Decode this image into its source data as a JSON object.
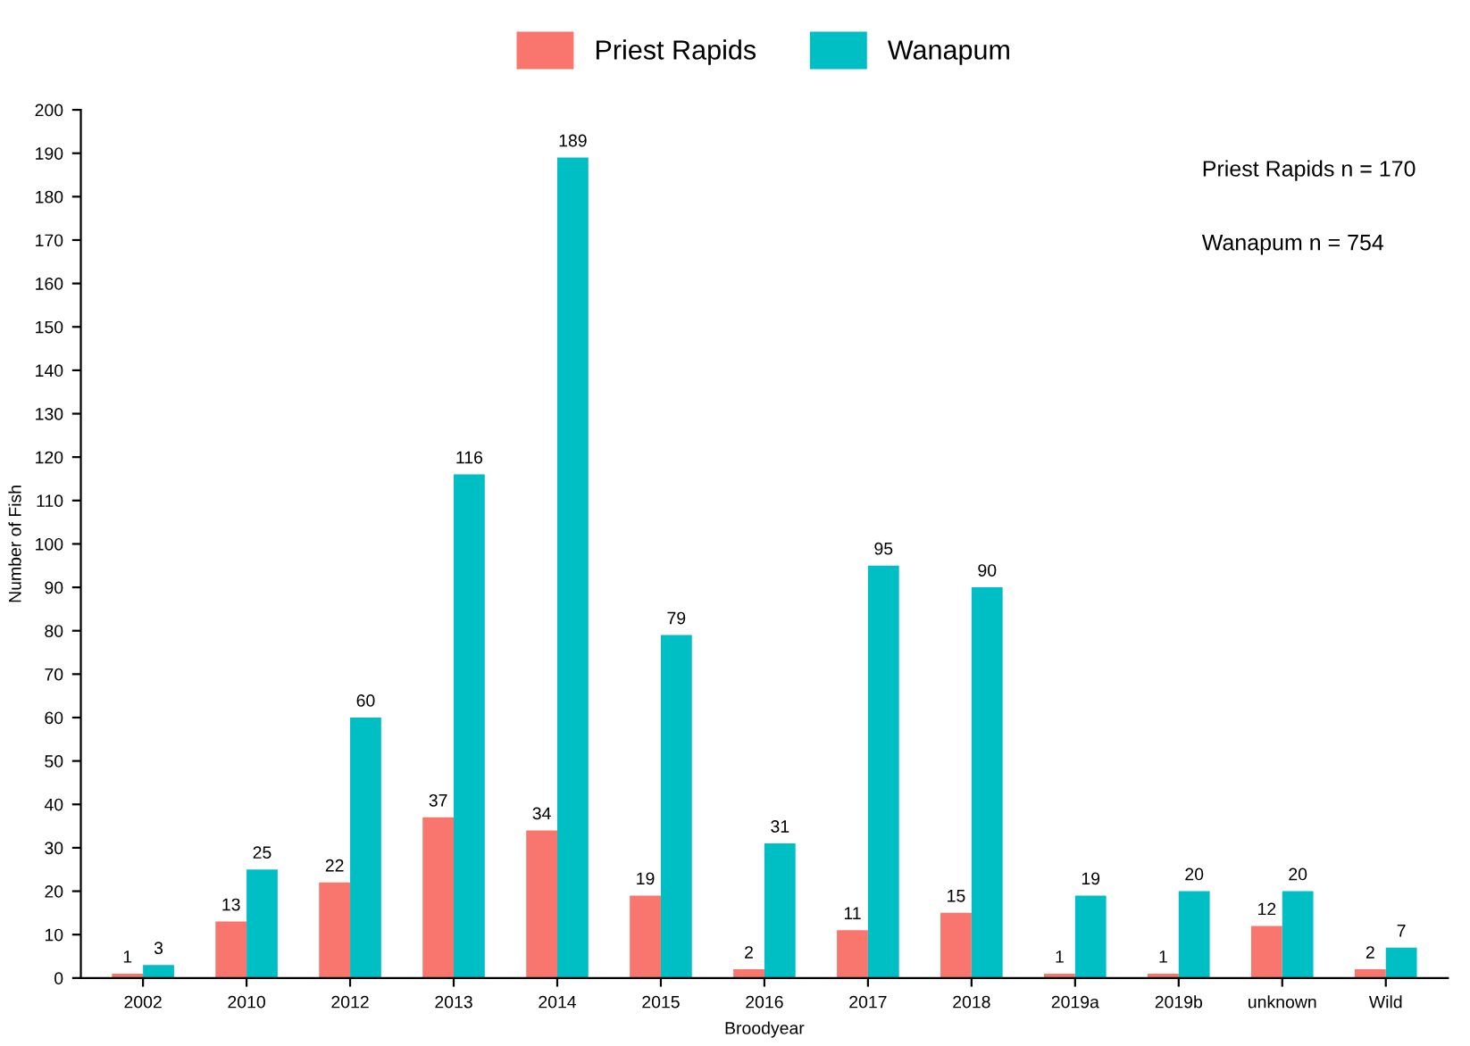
{
  "chart_data": {
    "type": "bar",
    "xlabel": "Broodyear",
    "ylabel": "Number of Fish",
    "categories": [
      "2002",
      "2010",
      "2012",
      "2013",
      "2014",
      "2015",
      "2016",
      "2017",
      "2018",
      "2019a",
      "2019b",
      "unknown",
      "Wild"
    ],
    "series": [
      {
        "name": "Priest Rapids",
        "color": "#f8766d",
        "values": [
          1,
          13,
          22,
          37,
          34,
          19,
          2,
          11,
          15,
          1,
          1,
          12,
          2
        ]
      },
      {
        "name": "Wanapum",
        "color": "#00bfc4",
        "values": [
          3,
          25,
          60,
          116,
          189,
          79,
          31,
          95,
          90,
          19,
          20,
          20,
          7
        ]
      }
    ],
    "ylim": [
      0,
      200
    ],
    "yticks": [
      0,
      10,
      20,
      30,
      40,
      50,
      60,
      70,
      80,
      90,
      100,
      110,
      120,
      130,
      140,
      150,
      160,
      170,
      180,
      190,
      200
    ],
    "grid": false,
    "legend": "top",
    "data_labels": true,
    "annotations": [
      "Priest Rapids n = 170",
      "Wanapum n = 754"
    ]
  }
}
